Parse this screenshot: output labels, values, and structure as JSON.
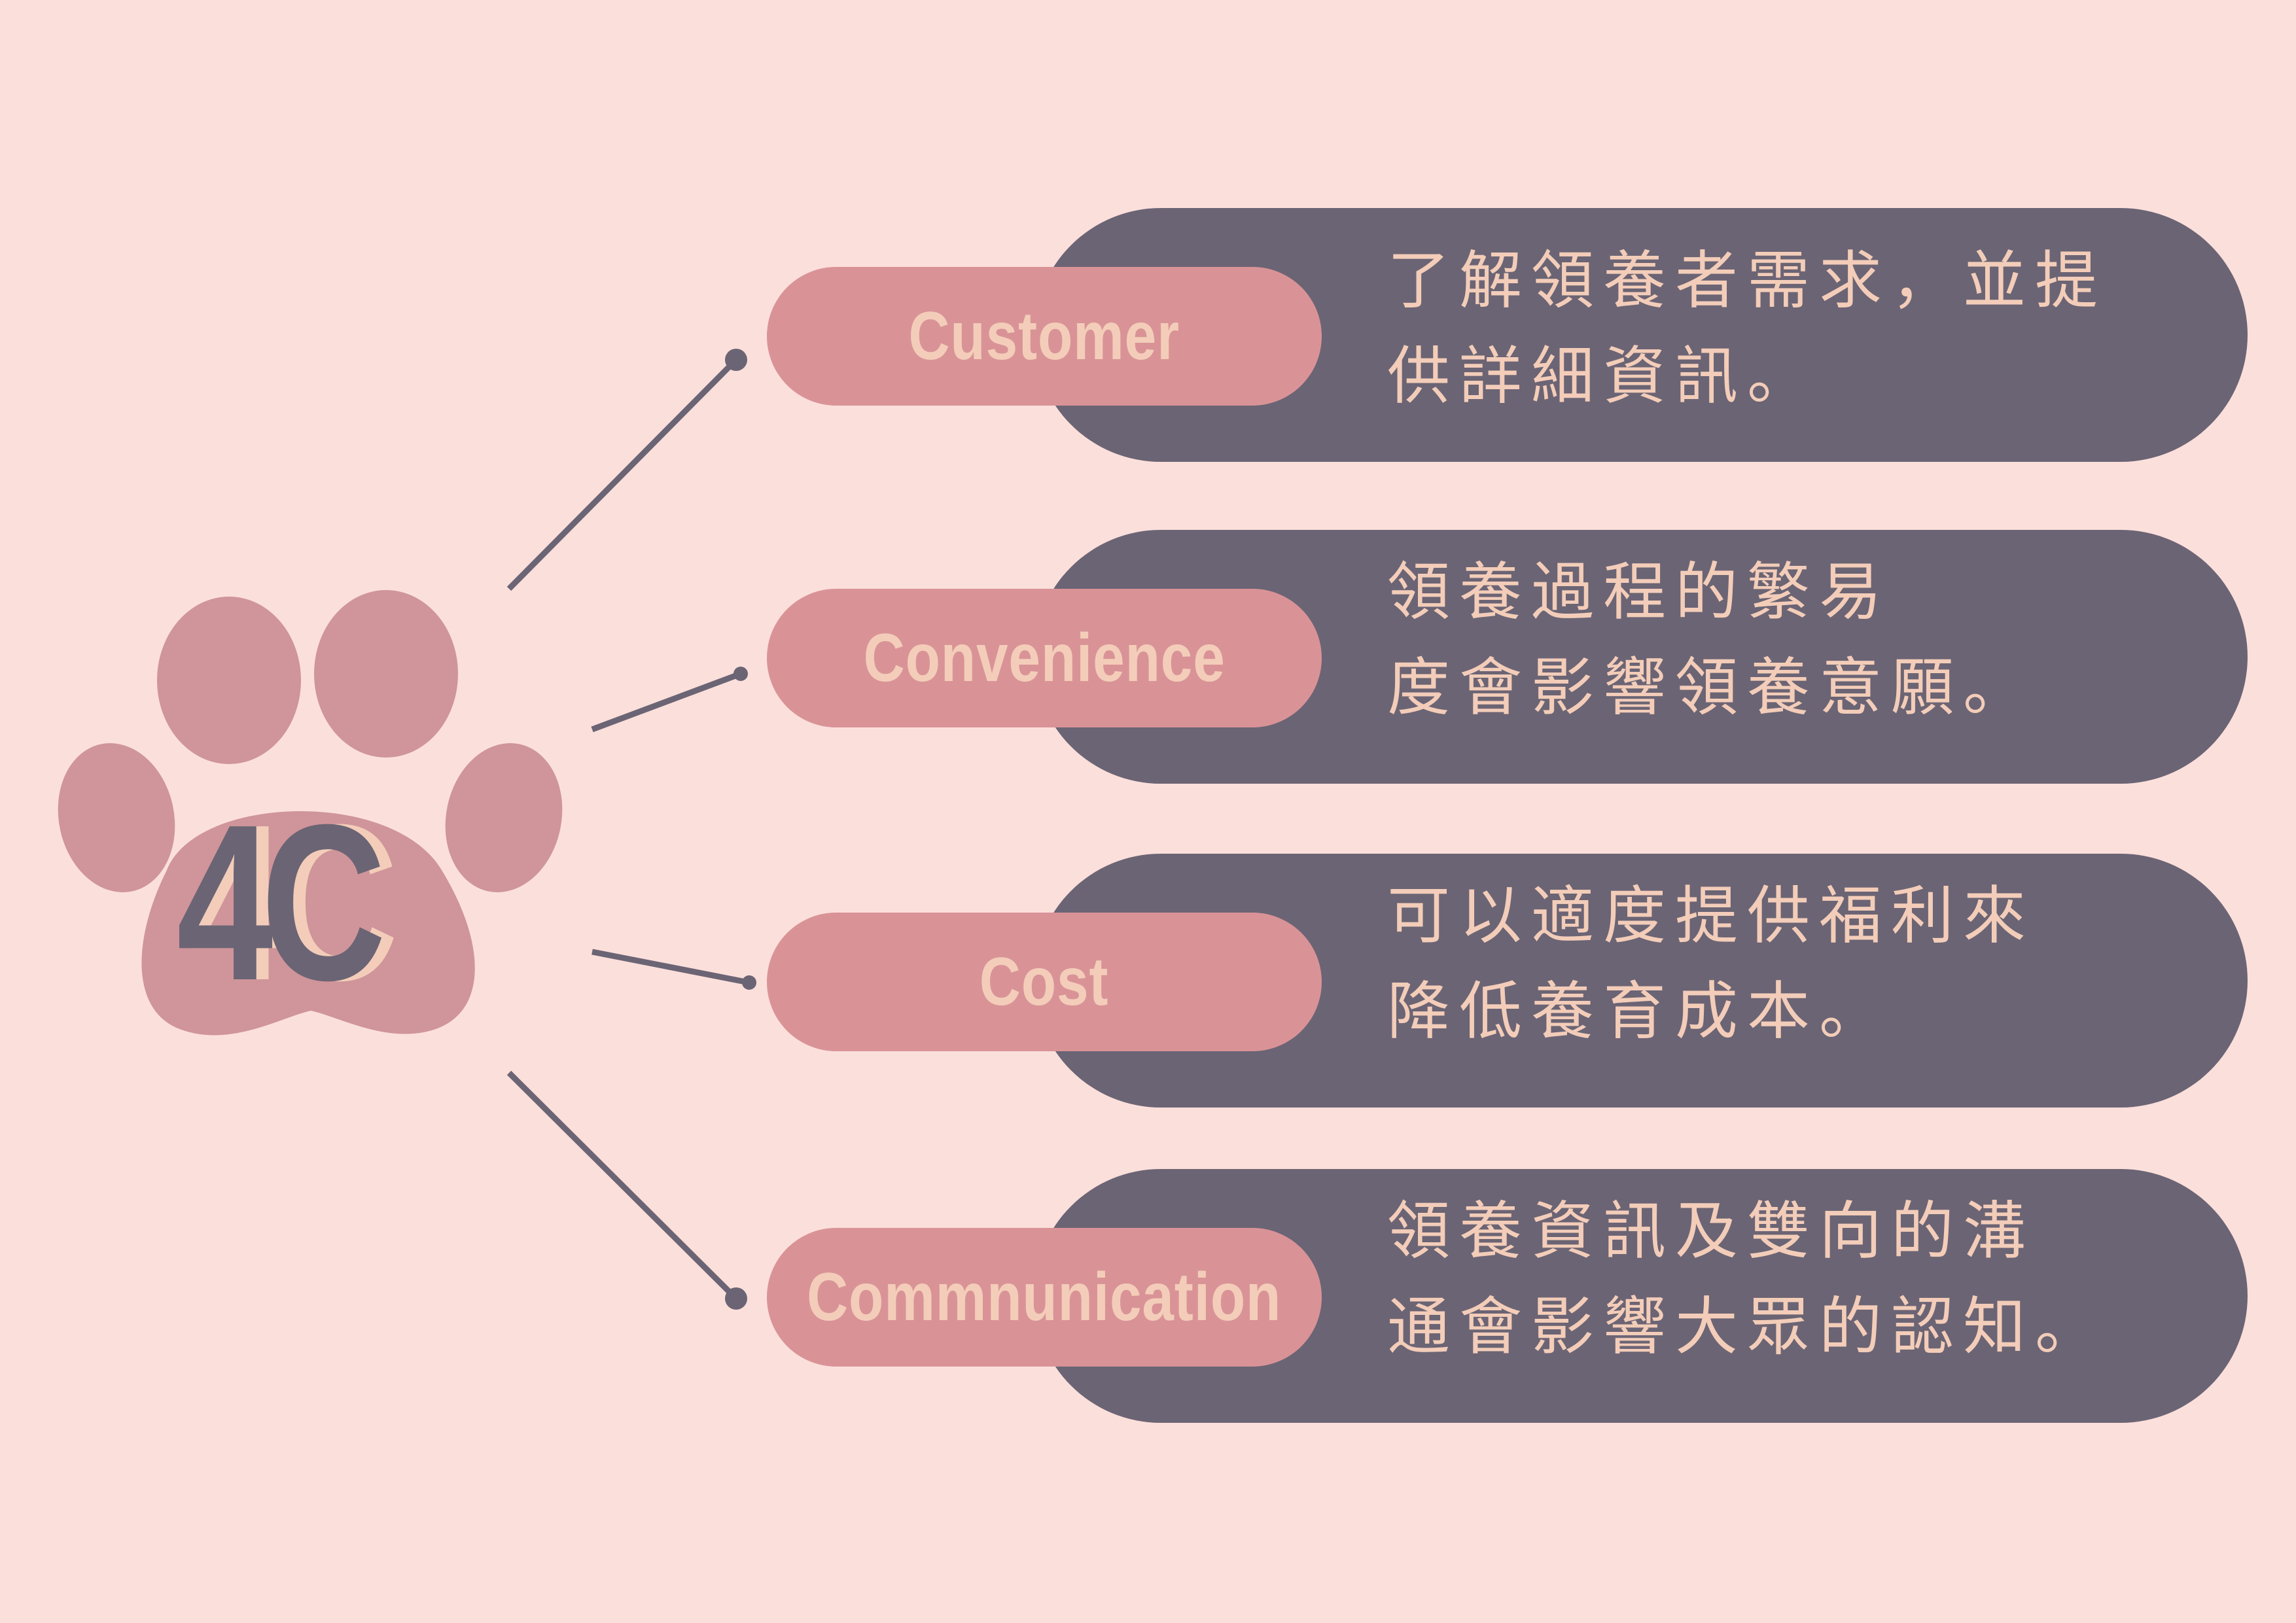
{
  "diagram": {
    "center_label": "4C",
    "items": [
      {
        "label": "Customer",
        "desc_line1": "了解領養者需求，並提",
        "desc_line2": "供詳細資訊。"
      },
      {
        "label": "Convenience",
        "desc_line1": "領養過程的繁易",
        "desc_line2": "度會影響領養意願。"
      },
      {
        "label": "Cost",
        "desc_line1": "可以適度提供福利來",
        "desc_line2": "降低養育成本。"
      },
      {
        "label": "Commnunication",
        "desc_line1": "領養資訊及雙向的溝",
        "desc_line2": "通會影響大眾的認知。"
      }
    ]
  },
  "colors": {
    "background": "#fbdfdb",
    "paw": "#cf959a",
    "card": "#6b6474",
    "pill": "#d99397",
    "text_light": "#f3cdb9",
    "connector": "#6b6474"
  }
}
